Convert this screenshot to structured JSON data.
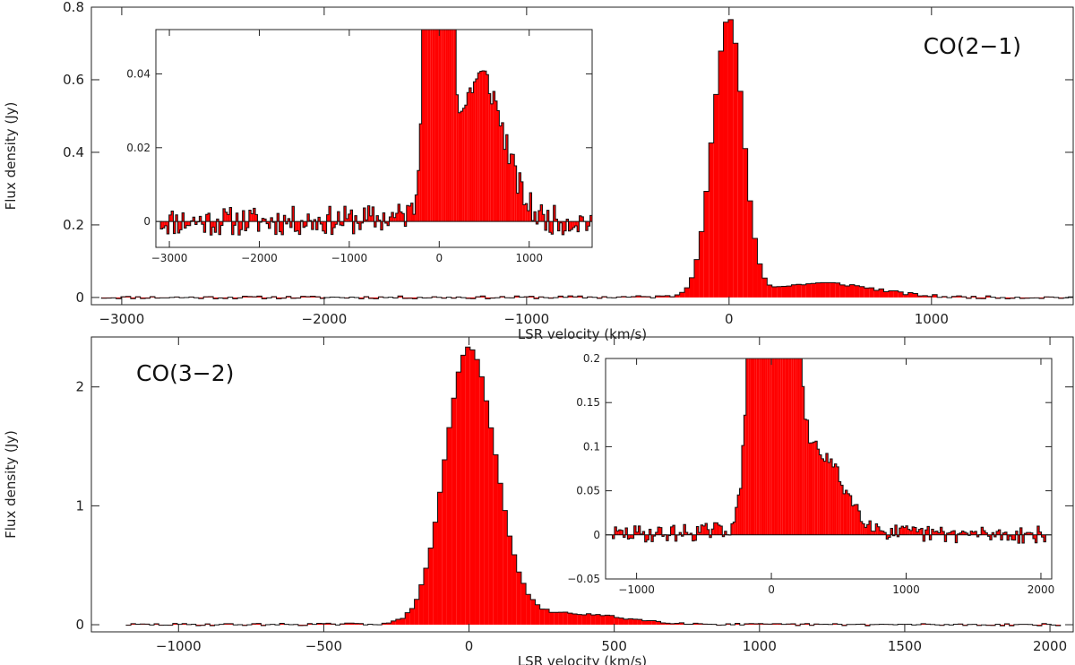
{
  "chart_data": [
    {
      "type": "area",
      "title": "CO(2−1)",
      "xlabel": "LSR velocity (km/s)",
      "ylabel": "Flux density (Jy)",
      "xlim": [
        -3150,
        1700
      ],
      "ylim": [
        -0.02,
        0.8
      ],
      "xticks": [
        -3000,
        -2000,
        -1000,
        0,
        1000
      ],
      "xtick_labels": [
        "−3000",
        "−2000",
        "−1000",
        "0",
        "1000"
      ],
      "yticks": [
        0,
        0.2,
        0.4,
        0.6,
        0.8
      ],
      "ytick_labels": [
        "0",
        "0.2",
        "0.4",
        "0.6",
        "0.8"
      ],
      "grid": false,
      "color": "#ff0000",
      "profile": {
        "amp": 0.76,
        "sigma_neg": 80,
        "sigma_pos": 70,
        "wing_center": 470,
        "wing_amp": 0.038,
        "wing_sigma": 250,
        "noise": 0.004,
        "bin_start": -3100,
        "bin_end": 1680,
        "bin_width": 24,
        "seed": 11
      },
      "inset": {
        "xlim": [
          -3150,
          1700
        ],
        "ylim": [
          -0.007,
          0.052
        ],
        "xticks": [
          -3000,
          -2000,
          -1000,
          0,
          1000
        ],
        "xtick_labels": [
          "−3000",
          "−2000",
          "−1000",
          "0",
          "1000"
        ],
        "yticks": [
          0,
          0.02,
          0.04
        ],
        "ytick_labels": [
          "0",
          "0.02",
          "0.04"
        ]
      }
    },
    {
      "type": "area",
      "title": "CO(3−2)",
      "xlabel": "LSR velocity (km/s)",
      "ylabel": "Flux density (Jy)",
      "xlim": [
        -1300,
        2080
      ],
      "ylim": [
        -0.06,
        2.42
      ],
      "xticks": [
        -1000,
        -500,
        0,
        500,
        1000,
        1500,
        2000
      ],
      "xtick_labels": [
        "−1000",
        "−500",
        "0",
        "500",
        "1000",
        "1500",
        "2000"
      ],
      "yticks": [
        0,
        1,
        2
      ],
      "ytick_labels": [
        "0",
        "1",
        "2"
      ],
      "grid": false,
      "color": "#ff0000",
      "profile": {
        "amp": 2.3,
        "sigma_neg": 82,
        "sigma_pos": 90,
        "wing_center": 330,
        "wing_amp": 0.09,
        "wing_sigma": 200,
        "noise": 0.01,
        "bin_start": -1180,
        "bin_end": 2030,
        "bin_width": 16,
        "seed": 29
      },
      "inset": {
        "xlim": [
          -1230,
          2080
        ],
        "ylim": [
          -0.05,
          0.2
        ],
        "xticks": [
          -1000,
          0,
          1000,
          2000
        ],
        "xtick_labels": [
          "−1000",
          "0",
          "1000",
          "2000"
        ],
        "yticks": [
          -0.05,
          0,
          0.05,
          0.1,
          0.15,
          0.2
        ],
        "ytick_labels": [
          "−0.05",
          "0",
          "0.05",
          "0.1",
          "0.15",
          "0.2"
        ]
      }
    }
  ]
}
